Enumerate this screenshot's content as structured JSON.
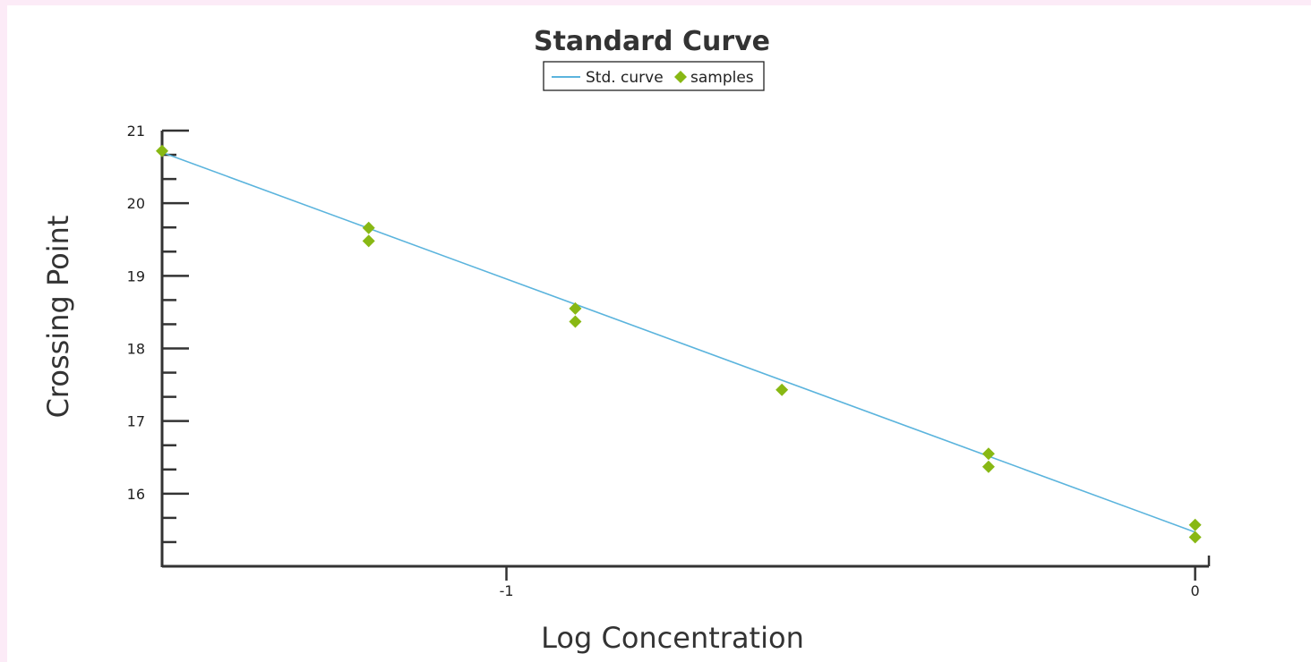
{
  "chart_data": {
    "type": "scatter",
    "title": "Standard Curve",
    "xlabel": "Log Concentration",
    "ylabel": "Crossing Point",
    "xlim": [
      -1.5,
      0.02
    ],
    "ylim": [
      15,
      21
    ],
    "x_ticks": [
      {
        "value": -1,
        "label": "-1"
      },
      {
        "value": 0,
        "label": "0"
      }
    ],
    "y_ticks": [
      {
        "value": 16,
        "label": "16"
      },
      {
        "value": 17,
        "label": "17"
      },
      {
        "value": 18,
        "label": "18"
      },
      {
        "value": 19,
        "label": "19"
      },
      {
        "value": 20,
        "label": "20"
      },
      {
        "value": 21,
        "label": "21"
      }
    ],
    "legend": {
      "placement": "top-center",
      "entries": [
        {
          "label": "Std. curve",
          "marker": "line"
        },
        {
          "label": "samples",
          "marker": "diamond"
        }
      ]
    },
    "series": [
      {
        "name": "Std. curve",
        "kind": "line",
        "color": "#5bb4dd",
        "x": [
          -1.5,
          0
        ],
        "y": [
          20.7,
          15.47
        ]
      },
      {
        "name": "samples",
        "kind": "scatter",
        "color": "#88b814",
        "x": [
          -1.5,
          -1.2,
          -1.2,
          -0.9,
          -0.9,
          -0.6,
          -0.3,
          -0.3,
          0,
          0
        ],
        "y": [
          20.72,
          19.66,
          19.48,
          18.55,
          18.37,
          17.43,
          16.55,
          16.37,
          15.57,
          15.4
        ]
      }
    ],
    "grid": false
  }
}
